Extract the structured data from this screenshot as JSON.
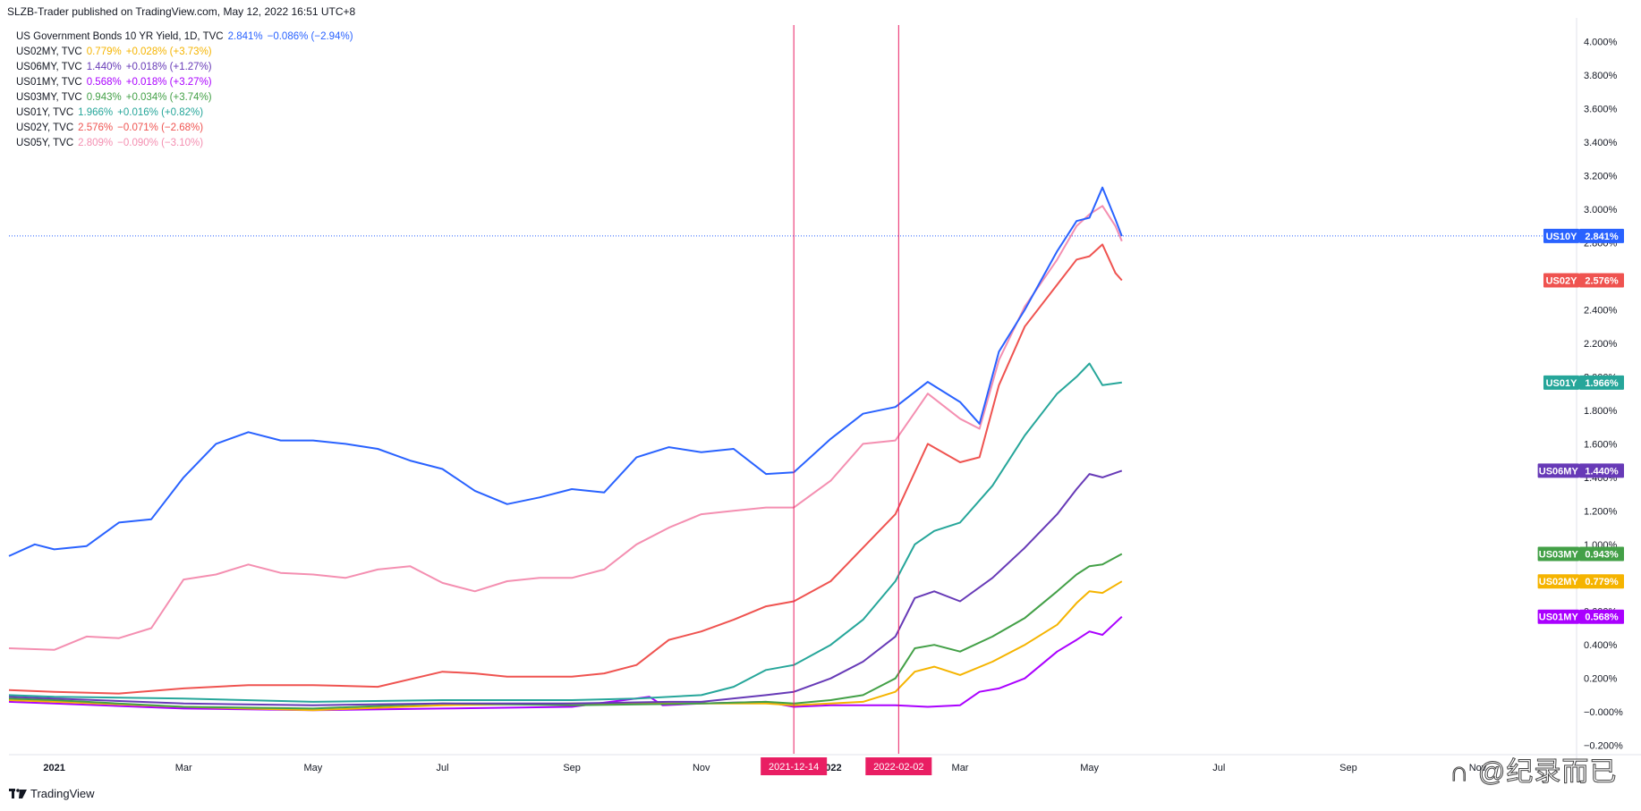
{
  "header": {
    "publisher_line": "SLZB-Trader published on TradingView.com, May 12, 2022 16:51 UTC+8"
  },
  "footer": {
    "brand": "TradingView",
    "watermark": "∩ @纪录而已"
  },
  "legend": [
    {
      "name": "US Government Bonds 10 YR Yield, 1D, TVC",
      "value": "2.841%",
      "change": "−0.086% (−2.94%)",
      "color": "#2962ff"
    },
    {
      "name": "US02MY, TVC",
      "value": "0.779%",
      "change": "+0.028% (+3.73%)",
      "color": "#f5b400"
    },
    {
      "name": "US06MY, TVC",
      "value": "1.440%",
      "change": "+0.018% (+1.27%)",
      "color": "#673ab7"
    },
    {
      "name": "US01MY, TVC",
      "value": "0.568%",
      "change": "+0.018% (+3.27%)",
      "color": "#aa00ff"
    },
    {
      "name": "US03MY, TVC",
      "value": "0.943%",
      "change": "+0.034% (+3.74%)",
      "color": "#43a047"
    },
    {
      "name": "US01Y, TVC",
      "value": "1.966%",
      "change": "+0.016% (+0.82%)",
      "color": "#26a69a"
    },
    {
      "name": "US02Y, TVC",
      "value": "2.576%",
      "change": "−0.071% (−2.68%)",
      "color": "#ef5350"
    },
    {
      "name": "US05Y, TVC",
      "value": "2.809%",
      "change": "−0.090% (−3.10%)",
      "color": "#f48fb1"
    }
  ],
  "chart_data": {
    "type": "line",
    "x_unit": "months since 2021-01-01",
    "ylim": [
      -0.25,
      4.1
    ],
    "xlim": [
      -0.7,
      23.5
    ],
    "y_ticks": [
      "4.000%",
      "3.800%",
      "3.600%",
      "3.400%",
      "3.200%",
      "3.000%",
      "2.800%",
      "2.600%",
      "2.400%",
      "2.200%",
      "2.000%",
      "1.800%",
      "1.600%",
      "1.400%",
      "1.200%",
      "1.000%",
      "0.800%",
      "0.600%",
      "0.400%",
      "0.200%",
      "−0.000%",
      "−0.200%"
    ],
    "y_tick_values": [
      4.0,
      3.8,
      3.6,
      3.4,
      3.2,
      3.0,
      2.8,
      2.6,
      2.4,
      2.2,
      2.0,
      1.8,
      1.6,
      1.4,
      1.2,
      1.0,
      0.8,
      0.6,
      0.4,
      0.2,
      0.0,
      -0.2
    ],
    "x_ticks": [
      {
        "label": "2021",
        "x": 0,
        "bold": true
      },
      {
        "label": "Mar",
        "x": 2
      },
      {
        "label": "May",
        "x": 4
      },
      {
        "label": "Jul",
        "x": 6
      },
      {
        "label": "Sep",
        "x": 8
      },
      {
        "label": "Nov",
        "x": 10
      },
      {
        "label": "2022",
        "x": 12,
        "bold": true
      },
      {
        "label": "Mar",
        "x": 14
      },
      {
        "label": "May",
        "x": 16
      },
      {
        "label": "Jul",
        "x": 18
      },
      {
        "label": "Sep",
        "x": 20
      },
      {
        "label": "Nov",
        "x": 22
      }
    ],
    "vlines": [
      {
        "label": "2021-12-14",
        "x": 11.43,
        "color": "#e91e63"
      },
      {
        "label": "2022-02-02",
        "x": 13.05,
        "color": "#e91e63"
      }
    ],
    "last_value_line": {
      "y": 2.841,
      "color": "#2962ff"
    },
    "badges": [
      {
        "name": "US10Y",
        "value": "2.841%",
        "y": 2.841,
        "color": "#2962ff"
      },
      {
        "name": "US02Y",
        "value": "2.576%",
        "y": 2.576,
        "color": "#ef5350"
      },
      {
        "name": "US01Y",
        "value": "1.966%",
        "y": 1.966,
        "color": "#26a69a"
      },
      {
        "name": "US06MY",
        "value": "1.440%",
        "y": 1.44,
        "color": "#673ab7"
      },
      {
        "name": "US03MY",
        "value": "0.943%",
        "y": 0.943,
        "color": "#43a047"
      },
      {
        "name": "US02MY",
        "value": "0.779%",
        "y": 0.779,
        "color": "#f5b400"
      },
      {
        "name": "US01MY",
        "value": "0.568%",
        "y": 0.568,
        "color": "#aa00ff"
      }
    ],
    "series": [
      {
        "name": "US10Y",
        "color": "#2962ff",
        "points": [
          [
            -0.7,
            0.93
          ],
          [
            -0.3,
            1.0
          ],
          [
            0,
            0.97
          ],
          [
            0.5,
            0.99
          ],
          [
            1,
            1.13
          ],
          [
            1.5,
            1.15
          ],
          [
            2,
            1.4
          ],
          [
            2.5,
            1.6
          ],
          [
            3,
            1.67
          ],
          [
            3.5,
            1.62
          ],
          [
            4,
            1.62
          ],
          [
            4.5,
            1.6
          ],
          [
            5,
            1.57
          ],
          [
            5.5,
            1.5
          ],
          [
            6,
            1.45
          ],
          [
            6.5,
            1.32
          ],
          [
            7,
            1.24
          ],
          [
            7.5,
            1.28
          ],
          [
            8,
            1.33
          ],
          [
            8.5,
            1.31
          ],
          [
            9,
            1.52
          ],
          [
            9.5,
            1.58
          ],
          [
            10,
            1.55
          ],
          [
            10.5,
            1.57
          ],
          [
            11,
            1.42
          ],
          [
            11.43,
            1.43
          ],
          [
            12,
            1.63
          ],
          [
            12.5,
            1.78
          ],
          [
            13,
            1.82
          ],
          [
            13.5,
            1.97
          ],
          [
            14,
            1.85
          ],
          [
            14.3,
            1.72
          ],
          [
            14.6,
            2.15
          ],
          [
            15,
            2.4
          ],
          [
            15.5,
            2.75
          ],
          [
            15.8,
            2.93
          ],
          [
            16,
            2.95
          ],
          [
            16.2,
            3.13
          ],
          [
            16.4,
            2.94
          ],
          [
            16.5,
            2.84
          ]
        ]
      },
      {
        "name": "US05Y",
        "color": "#f48fb1",
        "points": [
          [
            -0.7,
            0.38
          ],
          [
            0,
            0.37
          ],
          [
            0.5,
            0.45
          ],
          [
            1,
            0.44
          ],
          [
            1.5,
            0.5
          ],
          [
            2,
            0.79
          ],
          [
            2.5,
            0.82
          ],
          [
            3,
            0.88
          ],
          [
            3.5,
            0.83
          ],
          [
            4,
            0.82
          ],
          [
            4.5,
            0.8
          ],
          [
            5,
            0.85
          ],
          [
            5.5,
            0.87
          ],
          [
            6,
            0.77
          ],
          [
            6.5,
            0.72
          ],
          [
            7,
            0.78
          ],
          [
            7.5,
            0.8
          ],
          [
            8,
            0.8
          ],
          [
            8.5,
            0.85
          ],
          [
            9,
            1.0
          ],
          [
            9.5,
            1.1
          ],
          [
            10,
            1.18
          ],
          [
            10.5,
            1.2
          ],
          [
            11,
            1.22
          ],
          [
            11.43,
            1.22
          ],
          [
            12,
            1.38
          ],
          [
            12.5,
            1.6
          ],
          [
            13,
            1.62
          ],
          [
            13.5,
            1.9
          ],
          [
            14,
            1.75
          ],
          [
            14.3,
            1.69
          ],
          [
            14.6,
            2.1
          ],
          [
            15,
            2.42
          ],
          [
            15.5,
            2.7
          ],
          [
            15.8,
            2.9
          ],
          [
            16,
            2.97
          ],
          [
            16.2,
            3.02
          ],
          [
            16.4,
            2.9
          ],
          [
            16.5,
            2.81
          ]
        ]
      },
      {
        "name": "US02Y",
        "color": "#ef5350",
        "points": [
          [
            -0.7,
            0.13
          ],
          [
            0,
            0.12
          ],
          [
            1,
            0.11
          ],
          [
            2,
            0.14
          ],
          [
            3,
            0.16
          ],
          [
            4,
            0.16
          ],
          [
            5,
            0.15
          ],
          [
            6,
            0.24
          ],
          [
            6.5,
            0.23
          ],
          [
            7,
            0.21
          ],
          [
            8,
            0.21
          ],
          [
            8.5,
            0.23
          ],
          [
            9,
            0.28
          ],
          [
            9.5,
            0.43
          ],
          [
            10,
            0.48
          ],
          [
            10.5,
            0.55
          ],
          [
            11,
            0.63
          ],
          [
            11.43,
            0.66
          ],
          [
            12,
            0.78
          ],
          [
            12.5,
            0.98
          ],
          [
            13,
            1.18
          ],
          [
            13.5,
            1.6
          ],
          [
            14,
            1.49
          ],
          [
            14.3,
            1.52
          ],
          [
            14.6,
            1.95
          ],
          [
            15,
            2.3
          ],
          [
            15.5,
            2.55
          ],
          [
            15.8,
            2.7
          ],
          [
            16,
            2.72
          ],
          [
            16.2,
            2.79
          ],
          [
            16.4,
            2.62
          ],
          [
            16.5,
            2.576
          ]
        ]
      },
      {
        "name": "US01Y",
        "color": "#26a69a",
        "points": [
          [
            -0.7,
            0.1
          ],
          [
            0,
            0.09
          ],
          [
            2,
            0.08
          ],
          [
            4,
            0.06
          ],
          [
            6,
            0.07
          ],
          [
            8,
            0.07
          ],
          [
            9,
            0.08
          ],
          [
            10,
            0.1
          ],
          [
            10.5,
            0.15
          ],
          [
            11,
            0.25
          ],
          [
            11.43,
            0.28
          ],
          [
            12,
            0.4
          ],
          [
            12.5,
            0.55
          ],
          [
            13,
            0.78
          ],
          [
            13.3,
            1.0
          ],
          [
            13.6,
            1.08
          ],
          [
            14,
            1.13
          ],
          [
            14.5,
            1.35
          ],
          [
            15,
            1.65
          ],
          [
            15.5,
            1.9
          ],
          [
            15.8,
            2.0
          ],
          [
            16,
            2.08
          ],
          [
            16.2,
            1.95
          ],
          [
            16.5,
            1.966
          ]
        ]
      },
      {
        "name": "US06MY",
        "color": "#673ab7",
        "points": [
          [
            -0.7,
            0.09
          ],
          [
            0,
            0.08
          ],
          [
            2,
            0.05
          ],
          [
            4,
            0.04
          ],
          [
            6,
            0.05
          ],
          [
            8,
            0.05
          ],
          [
            9.5,
            0.06
          ],
          [
            10,
            0.06
          ],
          [
            11,
            0.1
          ],
          [
            11.43,
            0.12
          ],
          [
            12,
            0.2
          ],
          [
            12.5,
            0.3
          ],
          [
            13,
            0.45
          ],
          [
            13.3,
            0.68
          ],
          [
            13.6,
            0.72
          ],
          [
            14,
            0.66
          ],
          [
            14.5,
            0.8
          ],
          [
            15,
            0.98
          ],
          [
            15.5,
            1.18
          ],
          [
            15.8,
            1.33
          ],
          [
            16,
            1.42
          ],
          [
            16.2,
            1.4
          ],
          [
            16.5,
            1.44
          ]
        ]
      },
      {
        "name": "US03MY",
        "color": "#43a047",
        "points": [
          [
            -0.7,
            0.08
          ],
          [
            0,
            0.07
          ],
          [
            2,
            0.03
          ],
          [
            4,
            0.02
          ],
          [
            6,
            0.05
          ],
          [
            8,
            0.04
          ],
          [
            10,
            0.05
          ],
          [
            11,
            0.06
          ],
          [
            11.43,
            0.05
          ],
          [
            12,
            0.07
          ],
          [
            12.5,
            0.1
          ],
          [
            13,
            0.2
          ],
          [
            13.3,
            0.38
          ],
          [
            13.6,
            0.4
          ],
          [
            14,
            0.36
          ],
          [
            14.5,
            0.45
          ],
          [
            15,
            0.56
          ],
          [
            15.5,
            0.72
          ],
          [
            15.8,
            0.82
          ],
          [
            16,
            0.87
          ],
          [
            16.2,
            0.88
          ],
          [
            16.5,
            0.943
          ]
        ]
      },
      {
        "name": "US02MY",
        "color": "#f5b400",
        "points": [
          [
            -0.7,
            0.07
          ],
          [
            0,
            0.06
          ],
          [
            2,
            0.03
          ],
          [
            4,
            0.01
          ],
          [
            6,
            0.04
          ],
          [
            8,
            0.05
          ],
          [
            10,
            0.05
          ],
          [
            11,
            0.05
          ],
          [
            11.43,
            0.04
          ],
          [
            12,
            0.05
          ],
          [
            12.5,
            0.06
          ],
          [
            13,
            0.12
          ],
          [
            13.3,
            0.24
          ],
          [
            13.6,
            0.27
          ],
          [
            14,
            0.22
          ],
          [
            14.5,
            0.3
          ],
          [
            15,
            0.4
          ],
          [
            15.5,
            0.52
          ],
          [
            15.8,
            0.65
          ],
          [
            16,
            0.72
          ],
          [
            16.2,
            0.71
          ],
          [
            16.5,
            0.779
          ]
        ]
      },
      {
        "name": "US01MY",
        "color": "#aa00ff",
        "points": [
          [
            -0.7,
            0.06
          ],
          [
            0,
            0.05
          ],
          [
            2,
            0.02
          ],
          [
            4,
            0.01
          ],
          [
            6,
            0.02
          ],
          [
            8,
            0.03
          ],
          [
            9.2,
            0.09
          ],
          [
            9.4,
            0.04
          ],
          [
            10,
            0.05
          ],
          [
            11,
            0.06
          ],
          [
            11.43,
            0.03
          ],
          [
            12,
            0.04
          ],
          [
            13,
            0.04
          ],
          [
            13.5,
            0.03
          ],
          [
            14,
            0.04
          ],
          [
            14.3,
            0.12
          ],
          [
            14.6,
            0.14
          ],
          [
            15,
            0.2
          ],
          [
            15.5,
            0.36
          ],
          [
            15.8,
            0.43
          ],
          [
            16,
            0.48
          ],
          [
            16.2,
            0.46
          ],
          [
            16.5,
            0.568
          ]
        ]
      }
    ]
  }
}
